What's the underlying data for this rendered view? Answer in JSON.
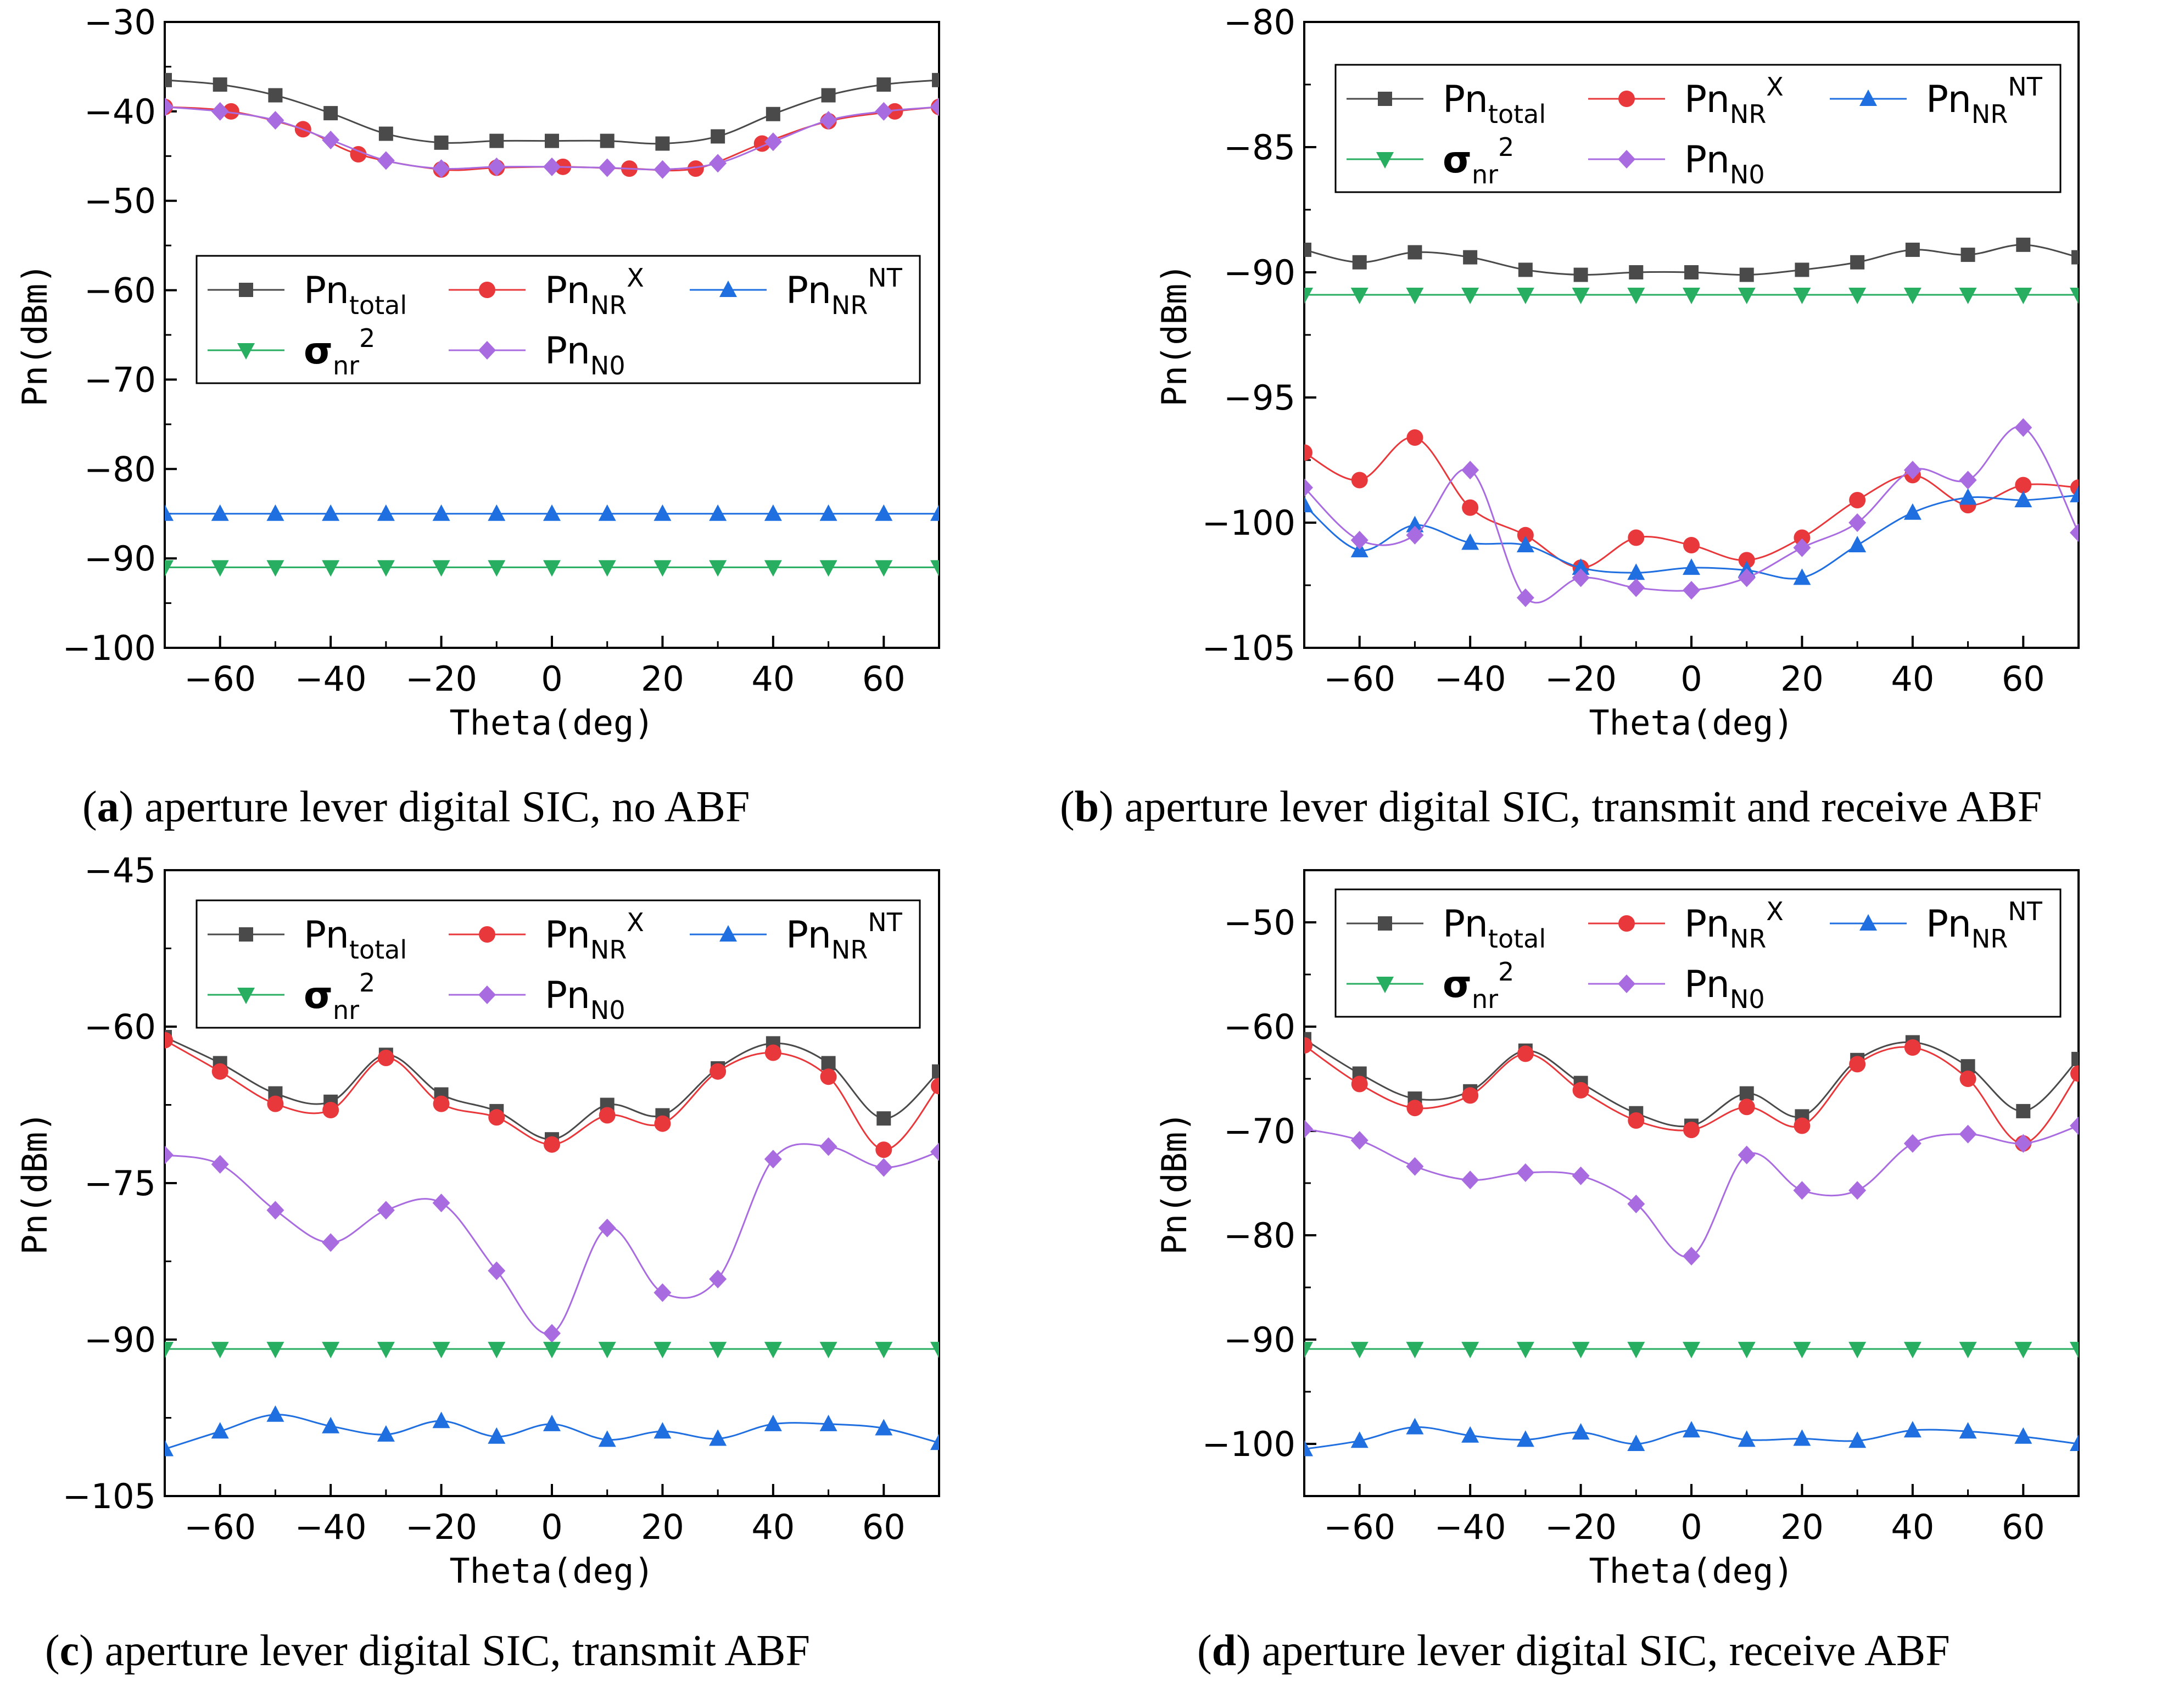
{
  "colors": {
    "total": "#4a4a4a",
    "nrx": "#e8383b",
    "nrnt": "#1f6fe0",
    "sigma": "#27ae60",
    "n0": "#a96ce0",
    "axis": "#000000"
  },
  "legend_labels": {
    "total": {
      "base": "Pn",
      "sub": "total",
      "sup": ""
    },
    "nrx": {
      "base": "Pn",
      "sub": "NR",
      "sup": "X"
    },
    "nrnt": {
      "base": "Pn",
      "sub": "NR",
      "sup": "NT"
    },
    "sigma": {
      "base": "σ",
      "sub": "nr",
      "sup": "2"
    },
    "n0": {
      "base": "Pn",
      "sub": "N0",
      "sup": ""
    }
  },
  "captions": [
    {
      "letter": "a",
      "text": ") aperture lever digital SIC, no ABF"
    },
    {
      "letter": "b",
      "text": ") aperture lever digital SIC, transmit and receive ABF"
    },
    {
      "letter": "c",
      "text": ") aperture lever digital SIC, transmit ABF"
    },
    {
      "letter": "d",
      "text": ") aperture lever digital SIC, receive ABF"
    }
  ],
  "chart_data": [
    {
      "type": "line",
      "id": "a",
      "xlabel": "Theta(deg)",
      "ylabel": "Pn(dBm)",
      "xlim": [
        -70,
        70
      ],
      "ylim": [
        -100,
        -30
      ],
      "xticks": [
        -60,
        -40,
        -20,
        0,
        20,
        40,
        60
      ],
      "yticks": [
        -100,
        -90,
        -80,
        -70,
        -60,
        -50,
        -40,
        -30
      ],
      "legend_position": "center",
      "series": [
        {
          "key": "total",
          "marker": "square",
          "x": [
            -70,
            -60,
            -50,
            -40,
            -30,
            -20,
            -10,
            0,
            10,
            20,
            30,
            40,
            50,
            60,
            70
          ],
          "y": [
            -36.5,
            -37,
            -38.2,
            -40.2,
            -42.5,
            -43.5,
            -43.3,
            -43.3,
            -43.3,
            -43.6,
            -42.8,
            -40.3,
            -38.2,
            -37,
            -36.5
          ]
        },
        {
          "key": "nrx",
          "marker": "circle",
          "x": [
            -70,
            -58,
            -45,
            -35,
            -20,
            -10,
            2,
            14,
            26,
            38,
            50,
            62,
            70
          ],
          "y": [
            -39.5,
            -40,
            -42,
            -44.8,
            -46.5,
            -46.3,
            -46.2,
            -46.4,
            -46.4,
            -43.6,
            -41.1,
            -40,
            -39.5
          ]
        },
        {
          "key": "nrnt",
          "marker": "triangle-up",
          "x": [
            -70,
            -60,
            -50,
            -40,
            -30,
            -20,
            -10,
            0,
            10,
            20,
            30,
            40,
            50,
            60,
            70
          ],
          "y": [
            -85,
            -85,
            -85,
            -85,
            -85,
            -85,
            -85,
            -85,
            -85,
            -85,
            -85,
            -85,
            -85,
            -85,
            -85
          ]
        },
        {
          "key": "sigma",
          "marker": "triangle-down",
          "x": [
            -70,
            -60,
            -50,
            -40,
            -30,
            -20,
            -10,
            0,
            10,
            20,
            30,
            40,
            50,
            60,
            70
          ],
          "y": [
            -91,
            -91,
            -91,
            -91,
            -91,
            -91,
            -91,
            -91,
            -91,
            -91,
            -91,
            -91,
            -91,
            -91,
            -91
          ]
        },
        {
          "key": "n0",
          "marker": "diamond",
          "x": [
            -70,
            -60,
            -50,
            -40,
            -30,
            -20,
            -10,
            0,
            10,
            20,
            30,
            40,
            50,
            60,
            70
          ],
          "y": [
            -39.5,
            -40,
            -41,
            -43.2,
            -45.5,
            -46.4,
            -46.2,
            -46.2,
            -46.3,
            -46.5,
            -45.8,
            -43.4,
            -41,
            -40,
            -39.5
          ]
        }
      ]
    },
    {
      "type": "line",
      "id": "b",
      "xlabel": "Theta(deg)",
      "ylabel": "Pn(dBm)",
      "xlim": [
        -70,
        70
      ],
      "ylim": [
        -105,
        -80
      ],
      "xticks": [
        -60,
        -40,
        -20,
        0,
        20,
        40,
        60
      ],
      "yticks": [
        -105,
        -100,
        -95,
        -90,
        -85,
        -80
      ],
      "legend_position": "top",
      "series": [
        {
          "key": "total",
          "marker": "square",
          "x": [
            -70,
            -60,
            -50,
            -40,
            -30,
            -20,
            -10,
            0,
            10,
            20,
            30,
            40,
            50,
            60,
            70
          ],
          "y": [
            -89.1,
            -89.6,
            -89.2,
            -89.4,
            -89.9,
            -90.1,
            -90,
            -90,
            -90.1,
            -89.9,
            -89.6,
            -89.1,
            -89.3,
            -88.9,
            -89.4
          ]
        },
        {
          "key": "sigma",
          "marker": "triangle-down",
          "x": [
            -70,
            -60,
            -50,
            -40,
            -30,
            -20,
            -10,
            0,
            10,
            20,
            30,
            40,
            50,
            60,
            70
          ],
          "y": [
            -90.9,
            -90.9,
            -90.9,
            -90.9,
            -90.9,
            -90.9,
            -90.9,
            -90.9,
            -90.9,
            -90.9,
            -90.9,
            -90.9,
            -90.9,
            -90.9,
            -90.9
          ]
        },
        {
          "key": "nrx",
          "marker": "circle",
          "x": [
            -70,
            -60,
            -50,
            -40,
            -30,
            -20,
            -10,
            0,
            10,
            20,
            30,
            40,
            50,
            60,
            70
          ],
          "y": [
            -97.2,
            -98.3,
            -96.6,
            -99.4,
            -100.5,
            -101.8,
            -100.6,
            -100.9,
            -101.5,
            -100.6,
            -99.1,
            -98.1,
            -99.3,
            -98.5,
            -98.6
          ]
        },
        {
          "key": "nrnt",
          "marker": "triangle-up",
          "x": [
            -70,
            -60,
            -50,
            -40,
            -30,
            -20,
            -10,
            0,
            10,
            20,
            30,
            40,
            50,
            60,
            70
          ],
          "y": [
            -99.3,
            -101.1,
            -100.1,
            -100.8,
            -100.9,
            -101.8,
            -102,
            -101.8,
            -101.9,
            -102.2,
            -100.9,
            -99.6,
            -99,
            -99.1,
            -98.9
          ]
        },
        {
          "key": "n0",
          "marker": "diamond",
          "x": [
            -70,
            -60,
            -50,
            -40,
            -30,
            -20,
            -10,
            0,
            10,
            20,
            30,
            40,
            50,
            60,
            70
          ],
          "y": [
            -98.6,
            -100.7,
            -100.5,
            -97.9,
            -103,
            -102.2,
            -102.6,
            -102.7,
            -102.2,
            -101,
            -100,
            -97.9,
            -98.3,
            -96.2,
            -100.4
          ]
        }
      ]
    },
    {
      "type": "line",
      "id": "c",
      "xlabel": "Theta(deg)",
      "ylabel": "Pn(dBm)",
      "xlim": [
        -70,
        70
      ],
      "ylim": [
        -105,
        -45
      ],
      "xticks": [
        -60,
        -40,
        -20,
        0,
        20,
        40,
        60
      ],
      "yticks": [
        -105,
        -90,
        -75,
        -60,
        -45
      ],
      "legend_position": "top",
      "series": [
        {
          "key": "total",
          "marker": "square",
          "x": [
            -70,
            -60,
            -50,
            -40,
            -30,
            -20,
            -10,
            0,
            10,
            20,
            30,
            40,
            50,
            60,
            70
          ],
          "y": [
            -61,
            -63.5,
            -66.4,
            -67.2,
            -62.7,
            -66.5,
            -68.1,
            -70.8,
            -67.5,
            -68.5,
            -64,
            -61.6,
            -63.5,
            -68.8,
            -64.3
          ]
        },
        {
          "key": "nrx",
          "marker": "circle",
          "x": [
            -70,
            -60,
            -50,
            -40,
            -30,
            -20,
            -10,
            0,
            10,
            20,
            30,
            40,
            50,
            60,
            70
          ],
          "y": [
            -61.3,
            -64.3,
            -67.4,
            -68,
            -63,
            -67.4,
            -68.7,
            -71.3,
            -68.5,
            -69.3,
            -64.3,
            -62.5,
            -64.8,
            -71.8,
            -65.7
          ]
        },
        {
          "key": "n0",
          "marker": "diamond",
          "x": [
            -70,
            -60,
            -50,
            -40,
            -30,
            -20,
            -10,
            0,
            10,
            20,
            30,
            40,
            50,
            60,
            70
          ],
          "y": [
            -72.3,
            -73.2,
            -77.6,
            -80.7,
            -77.6,
            -76.9,
            -83.4,
            -89.4,
            -79.3,
            -85.5,
            -84.2,
            -72.7,
            -71.5,
            -73.5,
            -72
          ]
        },
        {
          "key": "sigma",
          "marker": "triangle-down",
          "x": [
            -70,
            -60,
            -50,
            -40,
            -30,
            -20,
            -10,
            0,
            10,
            20,
            30,
            40,
            50,
            60,
            70
          ],
          "y": [
            -90.9,
            -90.9,
            -90.9,
            -90.9,
            -90.9,
            -90.9,
            -90.9,
            -90.9,
            -90.9,
            -90.9,
            -90.9,
            -90.9,
            -90.9,
            -90.9,
            -90.9
          ]
        },
        {
          "key": "nrnt",
          "marker": "triangle-up",
          "x": [
            -70,
            -60,
            -50,
            -40,
            -30,
            -20,
            -10,
            0,
            10,
            20,
            30,
            40,
            50,
            60,
            70
          ],
          "y": [
            -100.5,
            -98.8,
            -97.2,
            -98.3,
            -99.1,
            -97.8,
            -99.3,
            -98.1,
            -99.6,
            -98.8,
            -99.5,
            -98.1,
            -98.1,
            -98.5,
            -99.9
          ]
        }
      ]
    },
    {
      "type": "line",
      "id": "d",
      "xlabel": "Theta(deg)",
      "ylabel": "Pn(dBm)",
      "xlim": [
        -70,
        70
      ],
      "ylim": [
        -105,
        -45
      ],
      "xticks": [
        -60,
        -40,
        -20,
        0,
        20,
        40,
        60
      ],
      "yticks": [
        -100,
        -90,
        -80,
        -70,
        -60,
        -50
      ],
      "legend_position": "top",
      "series": [
        {
          "key": "total",
          "marker": "square",
          "x": [
            -70,
            -60,
            -50,
            -40,
            -30,
            -20,
            -10,
            0,
            10,
            20,
            30,
            40,
            50,
            60,
            70
          ],
          "y": [
            -61.2,
            -64.5,
            -66.9,
            -66.2,
            -62.3,
            -65.4,
            -68.3,
            -69.5,
            -66.4,
            -68.6,
            -63.2,
            -61.5,
            -63.8,
            -68.1,
            -63.1
          ]
        },
        {
          "key": "nrx",
          "marker": "circle",
          "x": [
            -70,
            -60,
            -50,
            -40,
            -30,
            -20,
            -10,
            0,
            10,
            20,
            30,
            40,
            50,
            60,
            70
          ],
          "y": [
            -61.8,
            -65.5,
            -67.8,
            -66.6,
            -62.6,
            -66.1,
            -69,
            -69.9,
            -67.7,
            -69.5,
            -63.6,
            -62,
            -65,
            -71.2,
            -64.5
          ]
        },
        {
          "key": "n0",
          "marker": "diamond",
          "x": [
            -70,
            -60,
            -50,
            -40,
            -30,
            -20,
            -10,
            0,
            10,
            20,
            30,
            40,
            50,
            60,
            70
          ],
          "y": [
            -69.8,
            -70.9,
            -73.4,
            -74.7,
            -74,
            -74.3,
            -77,
            -82,
            -72.3,
            -75.7,
            -75.7,
            -71.2,
            -70.3,
            -71.2,
            -69.5
          ]
        },
        {
          "key": "sigma",
          "marker": "triangle-down",
          "x": [
            -70,
            -60,
            -50,
            -40,
            -30,
            -20,
            -10,
            0,
            10,
            20,
            30,
            40,
            50,
            60,
            70
          ],
          "y": [
            -90.9,
            -90.9,
            -90.9,
            -90.9,
            -90.9,
            -90.9,
            -90.9,
            -90.9,
            -90.9,
            -90.9,
            -90.9,
            -90.9,
            -90.9,
            -90.9,
            -90.9
          ]
        },
        {
          "key": "nrnt",
          "marker": "triangle-up",
          "x": [
            -70,
            -60,
            -50,
            -40,
            -30,
            -20,
            -10,
            0,
            10,
            20,
            30,
            40,
            50,
            60,
            70
          ],
          "y": [
            -100.5,
            -99.7,
            -98.4,
            -99.2,
            -99.6,
            -98.9,
            -100,
            -98.7,
            -99.6,
            -99.5,
            -99.7,
            -98.7,
            -98.8,
            -99.3,
            -100
          ]
        }
      ]
    }
  ]
}
